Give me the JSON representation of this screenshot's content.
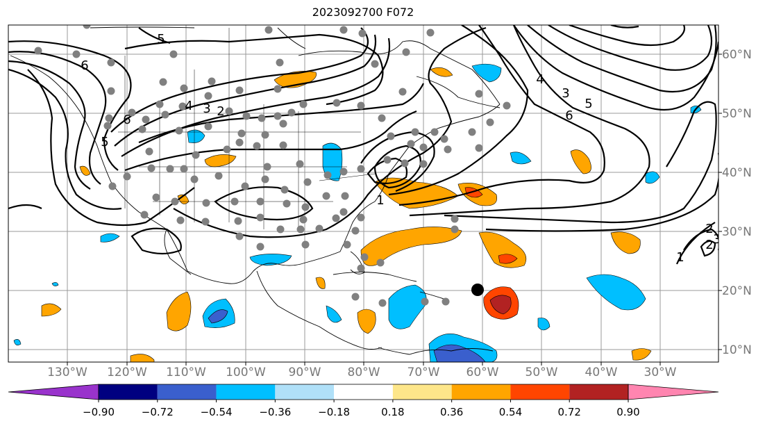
{
  "title": "2023092700 F072",
  "lon_labels": [
    "130°W",
    "120°W",
    "110°W",
    "100°W",
    "90°W",
    "80°W",
    "70°W",
    "60°W",
    "50°W",
    "40°W",
    "30°W"
  ],
  "lat_labels": [
    "60°N",
    "50°N",
    "40°N",
    "30°N",
    "20°N",
    "10°N"
  ],
  "contour_labels": [
    "5",
    "6",
    "6",
    "4",
    "3",
    "2",
    "5",
    "4",
    "3",
    "5",
    "6",
    "2",
    "1",
    "2",
    "3",
    "1"
  ],
  "colorbar": {
    "ticks": [
      "−0.90",
      "−0.72",
      "−0.54",
      "−0.36",
      "−0.18",
      "0.18",
      "0.36",
      "0.54",
      "0.72",
      "0.90"
    ],
    "colors": [
      "#9933cc",
      "#000080",
      "#3a5fcd",
      "#00bfff",
      "#b0e0f8",
      "#ffffff",
      "#fde68a",
      "#ffa500",
      "#ff4500",
      "#b22222",
      "#ff85b0"
    ]
  },
  "map": {
    "storm_marker": "black-dot"
  }
}
